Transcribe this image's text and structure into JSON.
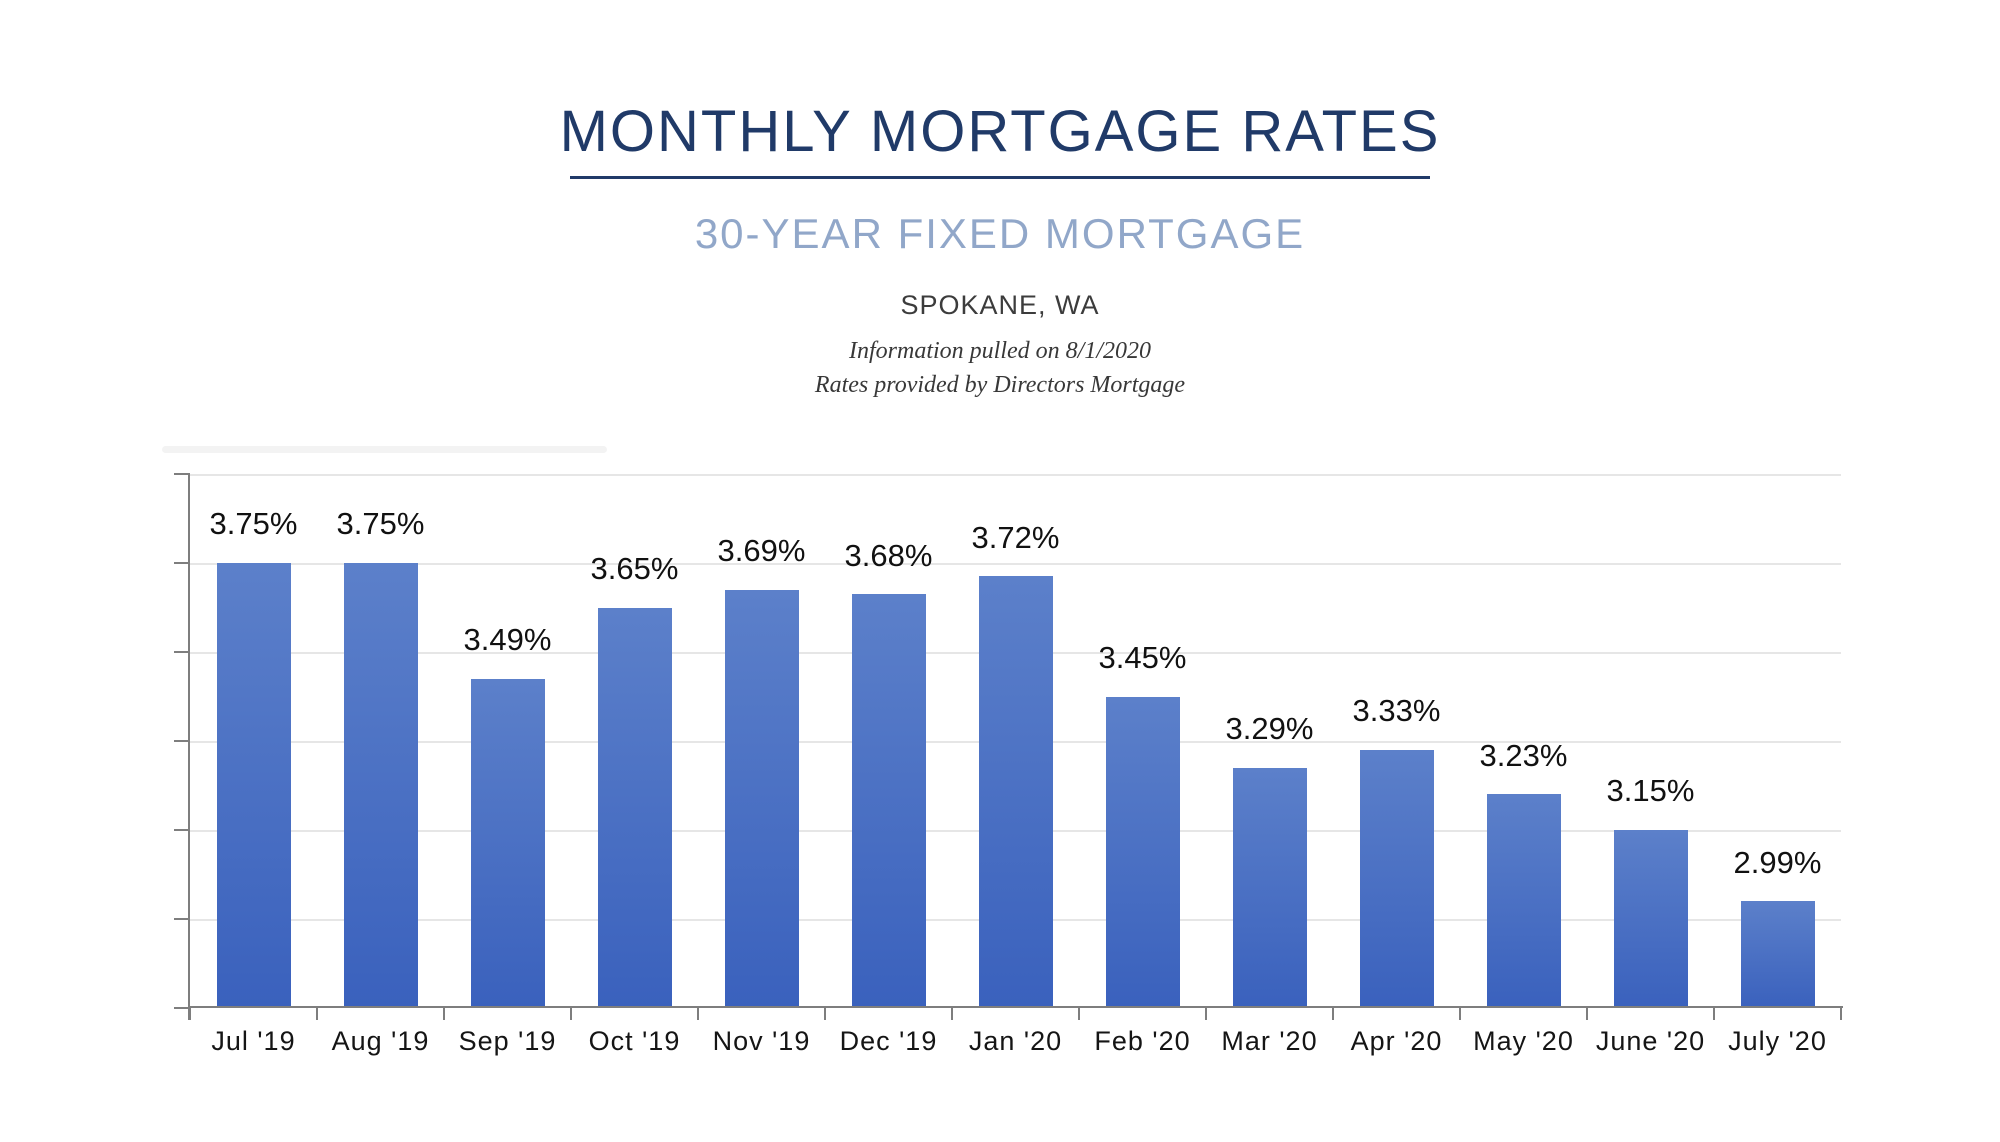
{
  "header": {
    "title": "MONTHLY MORTGAGE RATES",
    "subtitle": "30-YEAR FIXED MORTGAGE",
    "location": "SPOKANE, WA",
    "note_line1": "Information pulled on 8/1/2020",
    "note_line2": "Rates provided by Directors Mortgage"
  },
  "colors": {
    "title_navy": "#203a68",
    "subtitle_blue": "#91a7c9",
    "bar_gradient_top": "#5c80ca",
    "bar_gradient_bottom": "#3a61bd",
    "gridline": "#e6e6e6",
    "axis": "#7e7e7e",
    "value_label_text": "#111111"
  },
  "chart_data": {
    "type": "bar",
    "title": "Monthly Mortgage Rates — 30-Year Fixed Mortgage, Spokane, WA",
    "xlabel": "",
    "ylabel": "",
    "categories": [
      "Jul '19",
      "Aug '19",
      "Sep '19",
      "Oct '19",
      "Nov '19",
      "Dec '19",
      "Jan '20",
      "Feb '20",
      "Mar '20",
      "Apr '20",
      "May '20",
      "June '20",
      "July '20"
    ],
    "values": [
      3.75,
      3.75,
      3.49,
      3.65,
      3.69,
      3.68,
      3.72,
      3.45,
      3.29,
      3.33,
      3.23,
      3.15,
      2.99
    ],
    "value_labels": [
      "3.75%",
      "3.75%",
      "3.49%",
      "3.65%",
      "3.69%",
      "3.68%",
      "3.72%",
      "3.45%",
      "3.29%",
      "3.33%",
      "3.23%",
      "3.15%",
      "2.99%"
    ],
    "unit": "percent",
    "ylim": [
      2.75,
      3.95
    ],
    "gridline_step": 0.2,
    "grid": true,
    "y_tick_labels_shown": false,
    "legend": "none"
  }
}
